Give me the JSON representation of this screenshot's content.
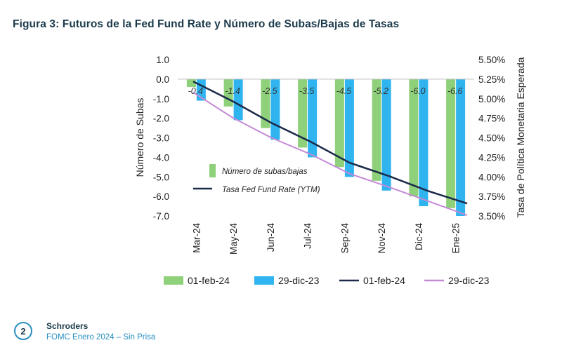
{
  "figure_title": "Figura 3: Futuros de la Fed Fund Rate y Número de Subas/Bajas de Tasas",
  "footer": {
    "page_number": "2",
    "brand": "Schroders",
    "subtitle": "FOMC Enero 2024 – Sin Prisa"
  },
  "colors": {
    "green": "#8fd17a",
    "blue": "#2fb4f0",
    "navy": "#1b2a4a",
    "purple": "#c48ad6",
    "title": "#1b3a4b",
    "accent": "#2a8fc1"
  },
  "chart_data": {
    "type": "bar",
    "title": "Figura 3: Futuros de la Fed Fund Rate y Número de Subas/Bajas de Tasas",
    "categories": [
      "Mar-24",
      "May-24",
      "Jun-24",
      "Jul-24",
      "Sep-24",
      "Nov-24",
      "Dic-24",
      "Ene-25"
    ],
    "ylabel": "Número de Subas",
    "y2label": "Tasa de Política Monetaria Esperada",
    "ylim": [
      -7.0,
      1.0
    ],
    "yticks": [
      "1.0",
      "0.0",
      "-1.0",
      "-2.0",
      "-3.0",
      "-4.0",
      "-5.0",
      "-6.0",
      "-7.0"
    ],
    "y2lim": [
      3.5,
      5.5
    ],
    "y2ticks": [
      "5.50%",
      "5.25%",
      "5.00%",
      "4.75%",
      "4.50%",
      "4.25%",
      "4.00%",
      "3.75%",
      "3.50%"
    ],
    "bar_series": [
      {
        "name": "01-feb-24",
        "color": "#8fd17a",
        "values": [
          -0.4,
          -1.4,
          -2.5,
          -3.5,
          -4.5,
          -5.2,
          -6.0,
          -6.6
        ]
      },
      {
        "name": "29-dic-23",
        "color": "#2fb4f0",
        "values": [
          -1.1,
          -2.1,
          -3.1,
          -4.0,
          -5.0,
          -5.7,
          -6.5,
          -7.0
        ]
      }
    ],
    "line_series": [
      {
        "name": "01-feb-24",
        "color": "#1b2a4a",
        "axis": "right",
        "values": [
          5.22,
          4.97,
          4.69,
          4.45,
          4.18,
          4.01,
          3.82,
          3.66
        ]
      },
      {
        "name": "29-dic-23",
        "color": "#c48ad6",
        "axis": "right",
        "values": [
          5.08,
          4.76,
          4.5,
          4.29,
          4.04,
          3.87,
          3.69,
          3.51
        ]
      }
    ],
    "data_labels": [
      "-0.4",
      "-1.4",
      "-2.5",
      "-3.5",
      "-4.5",
      "-5.2",
      "-6.0",
      "-6.6"
    ],
    "inner_legend": [
      {
        "label": "Número de subas/bajas",
        "kind": "bar",
        "color": "#8fd17a"
      },
      {
        "label": "Tasa Fed Fund Rate (YTM)",
        "kind": "line",
        "color": "#1b2a4a"
      }
    ],
    "legend": [
      {
        "label": "01-feb-24",
        "kind": "bar",
        "color": "#8fd17a"
      },
      {
        "label": "29-dic-23",
        "kind": "bar",
        "color": "#2fb4f0"
      },
      {
        "label": "01-feb-24",
        "kind": "line",
        "color": "#1b2a4a"
      },
      {
        "label": "29-dic-23",
        "kind": "line",
        "color": "#c48ad6"
      }
    ]
  }
}
